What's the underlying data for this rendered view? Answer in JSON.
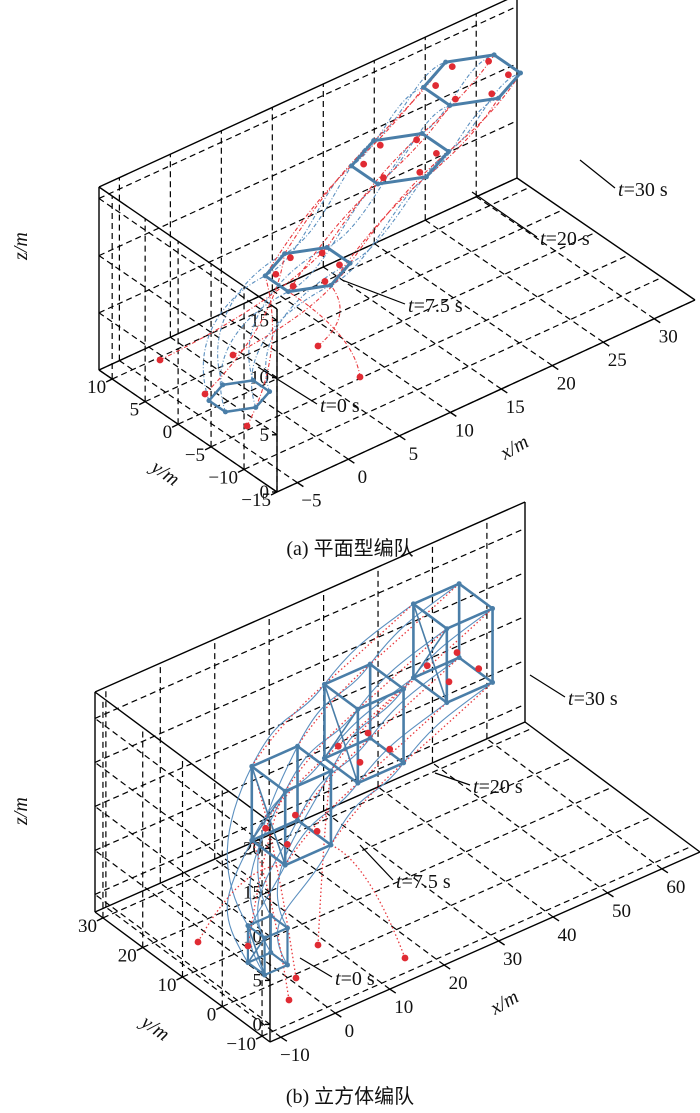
{
  "chart_data": [
    {
      "type": "scatter",
      "subtitle": "(a) 平面型编队",
      "xlabel": "x/m",
      "ylabel": "y/m",
      "zlabel": "z/m",
      "xticks": [
        "−5",
        "0",
        "5",
        "10",
        "15",
        "20",
        "25",
        "30"
      ],
      "yticks": [
        "10",
        "5",
        "0",
        "−5",
        "−10",
        "−15"
      ],
      "zticks": [
        "0",
        "5",
        "10",
        "15"
      ],
      "xlim": [
        -7,
        34
      ],
      "ylim": [
        -15,
        12
      ],
      "zlim": [
        0,
        16
      ],
      "grid": true,
      "annotations": [
        "t=0 s",
        "t=7.5 s",
        "t=20 s",
        "t=30 s"
      ],
      "formations": [
        {
          "t": 0,
          "center": [
            -1,
            0,
            0
          ],
          "shape": "hexagon",
          "radius": 2.5
        },
        {
          "t": 7.5,
          "center": [
            7,
            2,
            7
          ],
          "shape": "hexagon",
          "radius": 3.5
        },
        {
          "t": 20,
          "center": [
            18,
            5,
            11
          ],
          "shape": "hexagon",
          "radius": 4
        },
        {
          "t": 30,
          "center": [
            27,
            8,
            13
          ],
          "shape": "hexagon",
          "radius": 4
        }
      ]
    },
    {
      "type": "scatter",
      "subtitle": "(b) 立方体编队",
      "xlabel": "x/m",
      "ylabel": "y/m",
      "zlabel": "z/m",
      "xticks": [
        "−10",
        "0",
        "10",
        "20",
        "30",
        "40",
        "50",
        "60"
      ],
      "yticks": [
        "30",
        "20",
        "10",
        "0",
        "−10"
      ],
      "zticks": [
        "0",
        "5",
        "10",
        "15",
        "20"
      ],
      "xlim": [
        -12,
        67
      ],
      "ylim": [
        -12,
        32
      ],
      "zlim": [
        -2,
        23
      ],
      "grid": true,
      "annotations": [
        "t=0 s",
        "t=7.5 s",
        "t=20 s",
        "t=30 s"
      ],
      "formations": [
        {
          "t": 0,
          "center": [
            0,
            5,
            0
          ],
          "shape": "cube",
          "size": 3
        },
        {
          "t": 7.5,
          "center": [
            8,
            10,
            12
          ],
          "shape": "cube",
          "size": 6
        },
        {
          "t": 20,
          "center": [
            25,
            15,
            15
          ],
          "shape": "cube",
          "size": 6
        },
        {
          "t": 30,
          "center": [
            45,
            20,
            17
          ],
          "shape": "cube",
          "size": 6
        }
      ]
    }
  ],
  "colors": {
    "formation": "#4a7ea8",
    "trajectory_blue": "#5b8fbf",
    "trajectory_red": "#e8383d",
    "points": "#e02b33",
    "grid": "#000000"
  }
}
